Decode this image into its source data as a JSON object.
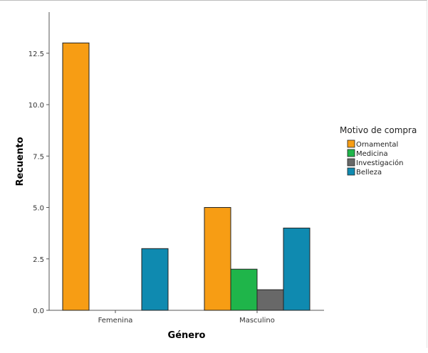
{
  "chart_data": {
    "type": "bar",
    "title": "",
    "xlabel": "Género",
    "ylabel": "Recuento",
    "categories": [
      "Femenina",
      "Masculino"
    ],
    "ylim": [
      0,
      14.5
    ],
    "yticks": [
      "0.0",
      "2.5",
      "5.0",
      "7.5",
      "10.0",
      "12.5"
    ],
    "ytick_values": [
      0,
      2.5,
      5,
      7.5,
      10,
      12.5
    ],
    "grid": false,
    "legend": {
      "title": "Motivo de compra",
      "placement": "right"
    },
    "series": [
      {
        "name": "Ornamental",
        "color": "#f79d14",
        "values": [
          13,
          5
        ]
      },
      {
        "name": "Medicina",
        "color": "#1fb54a",
        "values": [
          0,
          2
        ]
      },
      {
        "name": "Investigación",
        "color": "#686868",
        "values": [
          0,
          1
        ]
      },
      {
        "name": "Belleza",
        "color": "#0f8ab0",
        "values": [
          3,
          4
        ]
      }
    ]
  }
}
